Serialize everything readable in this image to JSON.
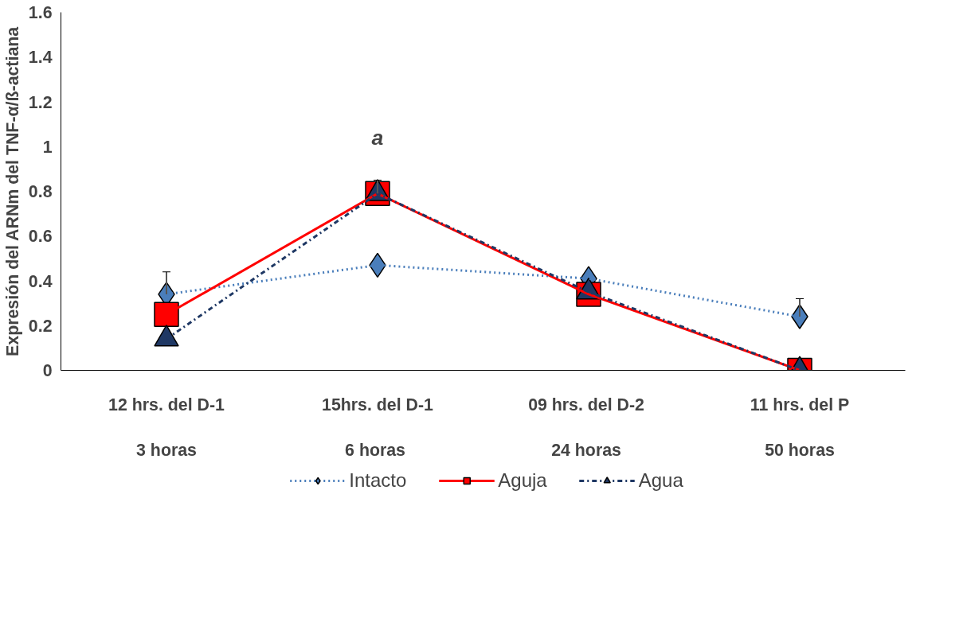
{
  "chart_data": {
    "type": "line",
    "ylabel": "Expresión del ARNm del TNF-α/ß-actiana",
    "categories": [
      "12 hrs. del D-1\n\n3 horas",
      "15hrs. del D-1\n\n6  horas",
      "09 hrs. del  D-2\n\n24  horas",
      "11 hrs. del P\n\n50 horas"
    ],
    "series": [
      {
        "name": "Intacto",
        "color": "#4a7ebb",
        "values": [
          0.34,
          0.47,
          0.41,
          0.24
        ],
        "errors": [
          [
            0.34,
            0.44
          ],
          null,
          null,
          [
            0.24,
            0.32
          ]
        ],
        "marker": "diamond",
        "line_style": "dotted"
      },
      {
        "name": "Aguja",
        "color": "#ff0000",
        "values": [
          0.25,
          0.79,
          0.34,
          0.0
        ],
        "errors": [
          null,
          [
            0.79,
            0.85
          ],
          null,
          null
        ],
        "marker": "square",
        "line_style": "solid"
      },
      {
        "name": "Agua",
        "color": "#1f3864",
        "values": [
          0.14,
          0.79,
          0.35,
          0.0
        ],
        "marker": "triangle",
        "line_style": "dashed"
      }
    ],
    "annotations": [
      "a"
    ],
    "ylim": [
      0,
      1.6
    ],
    "yticks": [
      0,
      0.2,
      0.4,
      0.6,
      0.8,
      1,
      1.2,
      1.4,
      1.6
    ],
    "grid": false,
    "legend": "bottom"
  }
}
